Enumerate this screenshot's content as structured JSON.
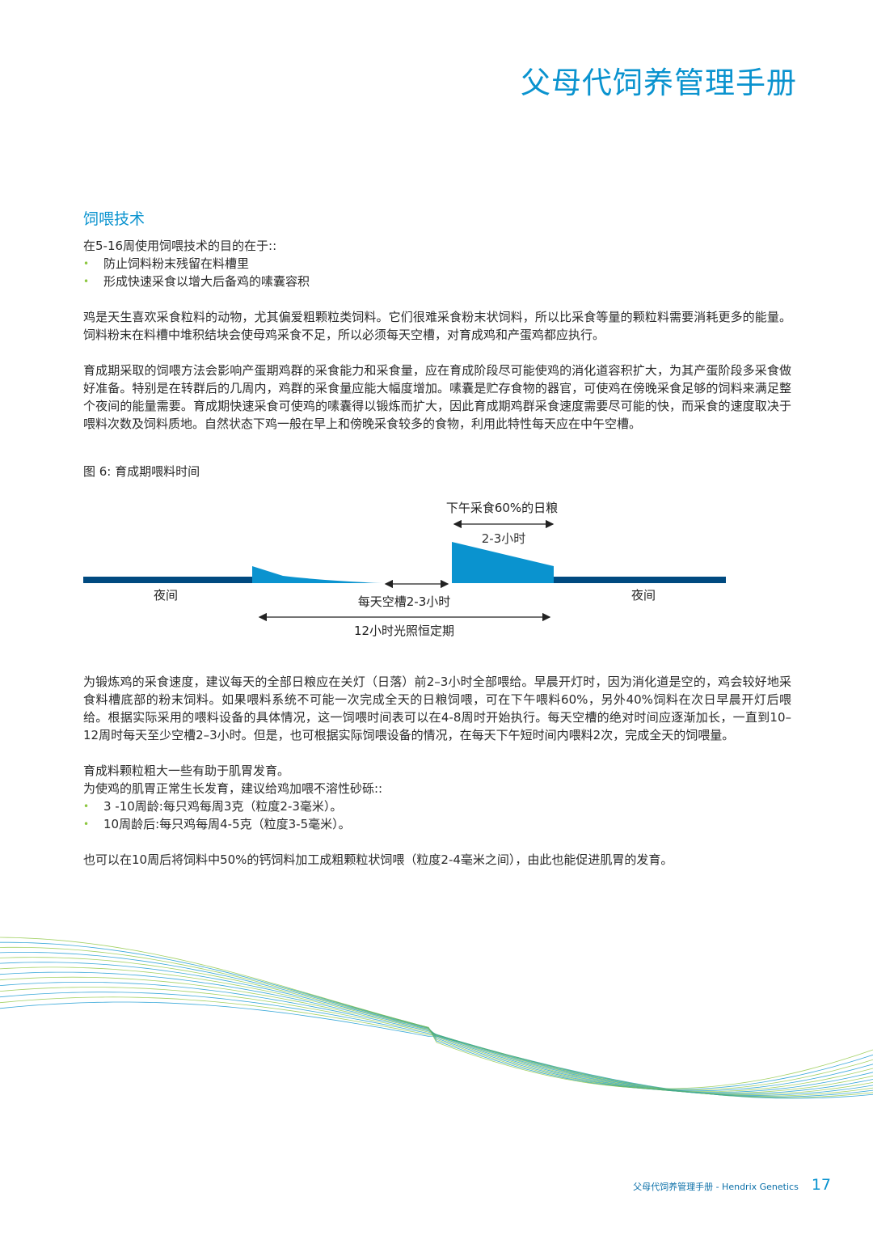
{
  "header": {
    "title": "父母代饲养管理手册"
  },
  "section": {
    "heading": "饲喂技术",
    "intro": "在5-16周使用饲喂技术的目的在于::",
    "bullets": [
      "防止饲料粉末残留在料槽里",
      "形成快速采食以增大后备鸡的嗉囊容积"
    ],
    "paragraphs": [
      "鸡是天生喜欢采食粒料的动物，尤其偏爱粗颗粒类饲料。它们很难采食粉末状饲料，所以比采食等量的颗粒料需要消耗更多的能量。饲料粉末在料槽中堆积结块会使母鸡采食不足，所以必须每天空槽，对育成鸡和产蛋鸡都应执行。",
      "育成期采取的饲喂方法会影响产蛋期鸡群的采食能力和采食量，应在育成阶段尽可能使鸡的消化道容积扩大，为其产蛋阶段多采食做好准备。特别是在转群后的几周内，鸡群的采食量应能大幅度增加。嗉囊是贮存食物的器官，可使鸡在傍晚采食足够的饲料来满足整个夜间的能量需要。育成期快速采食可使鸡的嗉囊得以锻炼而扩大，因此育成期鸡群采食速度需要尽可能的快，而采食的速度取决于喂料次数及饲料质地。自然状态下鸡一般在早上和傍晚采食较多的食物，利用此特性每天应在中午空槽。"
    ]
  },
  "figure": {
    "caption": "图 6: 育成期喂料时间",
    "labels": {
      "afternoon": "下午采食60%的日粮",
      "duration": "2-3小时",
      "night_left": "夜间",
      "night_right": "夜间",
      "empty": "每天空槽2-3小时",
      "light": "12小时光照恒定期"
    },
    "colors": {
      "night": "#004a80",
      "feed": "#0a93cf"
    }
  },
  "section2": {
    "paragraph1": "为锻炼鸡的采食速度，建议每天的全部日粮应在关灯（日落）前2–3小时全部喂给。早晨开灯时，因为消化道是空的，鸡会较好地采食料槽底部的粉末饲料。如果喂料系统不可能一次完成全天的日粮饲喂，可在下午喂料60%，另外40%饲料在次日早晨开灯后喂给。根据实际采用的喂料设备的具体情况，这一饲喂时间表可以在4-8周时开始执行。每天空槽的绝对时间应逐渐加长，一直到10–12周时每天至少空槽2–3小时。但是，也可根据实际饲喂设备的情况，在每天下午短时间内喂料2次，完成全天的饲喂量。",
    "line1": "育成料颗粒粗大一些有助于肌胃发育。",
    "line2": "为使鸡的肌胃正常生长发育，建议给鸡加喂不溶性砂砾::",
    "bullets": [
      "3 -10周龄:每只鸡每周3克（粒度2-3毫米）。",
      "10周龄后:每只鸡每周4-5克（粒度3-5毫米）。"
    ],
    "paragraph2": "也可以在10周后将饲料中50%的钙饲料加工成粗颗粒状饲喂（粒度2-4毫米之间），由此也能促进肌胃的发育。"
  },
  "footer": {
    "text": "父母代饲养管理手册 - Hendrix Genetics",
    "page": "17"
  }
}
